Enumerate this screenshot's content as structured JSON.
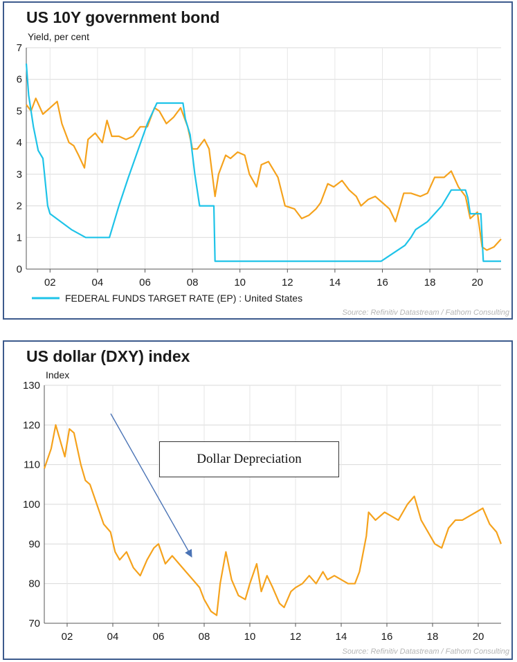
{
  "chart_data": [
    {
      "type": "line",
      "title": "US 10Y government bond",
      "subtitle": "Yield, per cent",
      "ylim": [
        0,
        7
      ],
      "yticks": [
        "0",
        "1",
        "2",
        "3",
        "4",
        "5",
        "6",
        "7"
      ],
      "xlim": [
        2001,
        2021
      ],
      "xticks": [
        {
          "label": "02",
          "x": 2002
        },
        {
          "label": "04",
          "x": 2004
        },
        {
          "label": "06",
          "x": 2006
        },
        {
          "label": "08",
          "x": 2008
        },
        {
          "label": "10",
          "x": 2010
        },
        {
          "label": "12",
          "x": 2012
        },
        {
          "label": "14",
          "x": 2014
        },
        {
          "label": "16",
          "x": 2016
        },
        {
          "label": "18",
          "x": 2018
        },
        {
          "label": "20",
          "x": 2020
        }
      ],
      "grid": true,
      "series": [
        {
          "color": "#f5a21c",
          "x": [
            2001.0,
            2001.2,
            2001.4,
            2001.7,
            2002.0,
            2002.3,
            2002.5,
            2002.8,
            2003.0,
            2003.2,
            2003.45,
            2003.6,
            2003.9,
            2004.2,
            2004.4,
            2004.6,
            2004.9,
            2005.2,
            2005.5,
            2005.8,
            2006.1,
            2006.4,
            2006.6,
            2006.9,
            2007.2,
            2007.5,
            2007.8,
            2008.0,
            2008.2,
            2008.5,
            2008.7,
            2008.95,
            2009.1,
            2009.4,
            2009.6,
            2009.9,
            2010.2,
            2010.4,
            2010.7,
            2010.9,
            2011.2,
            2011.6,
            2011.9,
            2012.3,
            2012.6,
            2012.9,
            2013.2,
            2013.4,
            2013.7,
            2013.95,
            2014.3,
            2014.6,
            2014.9,
            2015.1,
            2015.4,
            2015.7,
            2016.0,
            2016.3,
            2016.55,
            2016.9,
            2017.2,
            2017.6,
            2017.9,
            2018.2,
            2018.6,
            2018.9,
            2019.2,
            2019.5,
            2019.7,
            2020.0,
            2020.2,
            2020.4,
            2020.7,
            2021.0
          ],
          "y": [
            5.2,
            5.0,
            5.4,
            4.9,
            5.1,
            5.3,
            4.6,
            4.0,
            3.9,
            3.6,
            3.2,
            4.1,
            4.3,
            4.0,
            4.7,
            4.2,
            4.2,
            4.1,
            4.2,
            4.5,
            4.5,
            5.1,
            5.0,
            4.6,
            4.8,
            5.1,
            4.5,
            3.8,
            3.8,
            4.1,
            3.8,
            2.3,
            3.0,
            3.6,
            3.5,
            3.7,
            3.6,
            3.0,
            2.6,
            3.3,
            3.4,
            2.9,
            2.0,
            1.9,
            1.6,
            1.7,
            1.9,
            2.1,
            2.7,
            2.6,
            2.8,
            2.5,
            2.3,
            2.0,
            2.2,
            2.3,
            2.1,
            1.9,
            1.5,
            2.4,
            2.4,
            2.3,
            2.4,
            2.9,
            2.9,
            3.1,
            2.6,
            2.3,
            1.6,
            1.8,
            0.7,
            0.6,
            0.7,
            0.95
          ]
        },
        {
          "name": "FEDERAL FUNDS TARGET RATE (EP) : United States",
          "color": "#1ec3e8",
          "x": [
            2001.0,
            2001.1,
            2001.3,
            2001.5,
            2001.7,
            2001.9,
            2002.0,
            2002.9,
            2003.5,
            2004.5,
            2004.9,
            2005.3,
            2005.7,
            2006.1,
            2006.5,
            2007.6,
            2007.7,
            2007.9,
            2008.1,
            2008.3,
            2008.9,
            2008.95,
            2015.95,
            2016.95,
            2017.2,
            2017.4,
            2017.9,
            2018.2,
            2018.5,
            2018.9,
            2019.5,
            2019.6,
            2019.7,
            2020.15,
            2020.25,
            2021.0
          ],
          "y": [
            6.5,
            5.5,
            4.5,
            3.75,
            3.5,
            2.0,
            1.75,
            1.25,
            1.0,
            1.0,
            2.0,
            2.9,
            3.75,
            4.6,
            5.25,
            5.25,
            4.75,
            4.25,
            3.0,
            2.0,
            2.0,
            0.25,
            0.25,
            0.75,
            1.0,
            1.25,
            1.5,
            1.75,
            2.0,
            2.5,
            2.5,
            2.25,
            1.75,
            1.75,
            0.25,
            0.25
          ]
        }
      ],
      "legend": "bottom",
      "source": "Source: Refinitiv Datastream / Fathom Consulting"
    },
    {
      "type": "line",
      "title": "US dollar (DXY) index",
      "subtitle": "Index",
      "ylim": [
        70,
        130
      ],
      "yticks": [
        "70",
        "80",
        "90",
        "100",
        "110",
        "120",
        "130"
      ],
      "xlim": [
        2001,
        2021
      ],
      "xticks": [
        {
          "label": "02",
          "x": 2002
        },
        {
          "label": "04",
          "x": 2004
        },
        {
          "label": "06",
          "x": 2006
        },
        {
          "label": "08",
          "x": 2008
        },
        {
          "label": "10",
          "x": 2010
        },
        {
          "label": "12",
          "x": 2012
        },
        {
          "label": "14",
          "x": 2014
        },
        {
          "label": "16",
          "x": 2016
        },
        {
          "label": "18",
          "x": 2018
        },
        {
          "label": "20",
          "x": 2020
        }
      ],
      "grid": true,
      "series": [
        {
          "color": "#f5a21c",
          "x": [
            2001.0,
            2001.3,
            2001.5,
            2001.7,
            2001.9,
            2002.1,
            2002.3,
            2002.6,
            2002.8,
            2003.0,
            2003.3,
            2003.6,
            2003.9,
            2004.1,
            2004.3,
            2004.6,
            2004.9,
            2005.2,
            2005.5,
            2005.8,
            2006.0,
            2006.3,
            2006.6,
            2006.9,
            2007.2,
            2007.5,
            2007.8,
            2008.0,
            2008.3,
            2008.55,
            2008.7,
            2008.95,
            2009.2,
            2009.5,
            2009.8,
            2010.0,
            2010.3,
            2010.5,
            2010.75,
            2011.0,
            2011.3,
            2011.5,
            2011.8,
            2012.0,
            2012.3,
            2012.6,
            2012.9,
            2013.2,
            2013.4,
            2013.7,
            2014.0,
            2014.3,
            2014.6,
            2014.8,
            2015.1,
            2015.2,
            2015.5,
            2015.9,
            2016.2,
            2016.5,
            2016.9,
            2017.2,
            2017.5,
            2017.8,
            2018.1,
            2018.4,
            2018.7,
            2019.0,
            2019.3,
            2019.6,
            2019.9,
            2020.2,
            2020.5,
            2020.8,
            2021.0
          ],
          "y": [
            109,
            114,
            120,
            116,
            112,
            119,
            118,
            110,
            106,
            105,
            100,
            95,
            93,
            88,
            86,
            88,
            84,
            82,
            86,
            89,
            90,
            85,
            87,
            85,
            83,
            81,
            79,
            76,
            73,
            72,
            80,
            88,
            81,
            77,
            76,
            80,
            85,
            78,
            82,
            79,
            75,
            74,
            78,
            79,
            80,
            82,
            80,
            83,
            81,
            82,
            81,
            80,
            80,
            83,
            92,
            98,
            96,
            98,
            97,
            96,
            100,
            102,
            96,
            93,
            90,
            89,
            94,
            96,
            96,
            97,
            98,
            99,
            95,
            93,
            90
          ]
        }
      ],
      "annotation": "Dollar Depreciation",
      "source": "Source: Refinitiv Datastream / Fathom Consulting"
    }
  ]
}
